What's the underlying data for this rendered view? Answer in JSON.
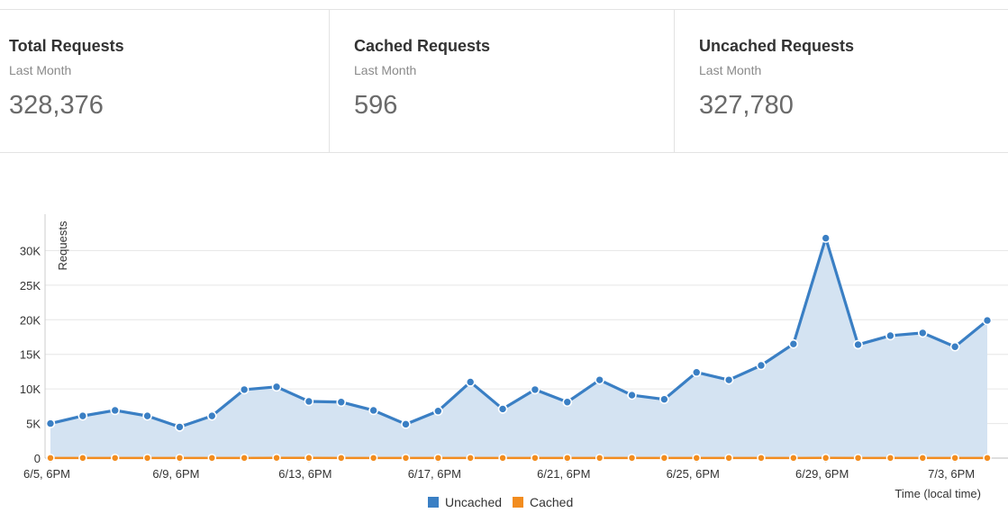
{
  "stats": [
    {
      "title": "Total Requests",
      "subtitle": "Last Month",
      "value": "328,376"
    },
    {
      "title": "Cached Requests",
      "subtitle": "Last Month",
      "value": "596"
    },
    {
      "title": "Uncached Requests",
      "subtitle": "Last Month",
      "value": "327,780"
    }
  ],
  "chart_data": {
    "type": "area",
    "ylabel": "Requests",
    "xlabel": "Time (local time)",
    "ylim": [
      0,
      35000
    ],
    "yticks": [
      0,
      5000,
      10000,
      15000,
      20000,
      25000,
      30000
    ],
    "ytick_labels": [
      "0",
      "5K",
      "10K",
      "15K",
      "20K",
      "25K",
      "30K"
    ],
    "xtick_labels": [
      "6/5, 6PM",
      "6/9, 6PM",
      "6/13, 6PM",
      "6/17, 6PM",
      "6/21, 6PM",
      "6/25, 6PM",
      "6/29, 6PM",
      "7/3, 6PM"
    ],
    "xtick_every": 4,
    "grid": true,
    "legend": "bottom-center",
    "series": [
      {
        "name": "Uncached",
        "color": "#3a7fc4",
        "fill": "#d4e3f2",
        "values": [
          5000,
          6100,
          6900,
          6100,
          4500,
          6100,
          9900,
          10300,
          8200,
          8100,
          6900,
          4900,
          6800,
          11000,
          7100,
          9900,
          8100,
          11300,
          9100,
          8500,
          12400,
          11300,
          13400,
          16500,
          31800,
          16400,
          17700,
          18100,
          16100,
          19900
        ]
      },
      {
        "name": "Cached",
        "color": "#f28c1e",
        "values": [
          20,
          20,
          20,
          20,
          20,
          20,
          20,
          40,
          30,
          20,
          20,
          20,
          20,
          20,
          20,
          20,
          20,
          20,
          20,
          20,
          20,
          20,
          20,
          20,
          30,
          20,
          20,
          20,
          20,
          20
        ]
      }
    ]
  }
}
